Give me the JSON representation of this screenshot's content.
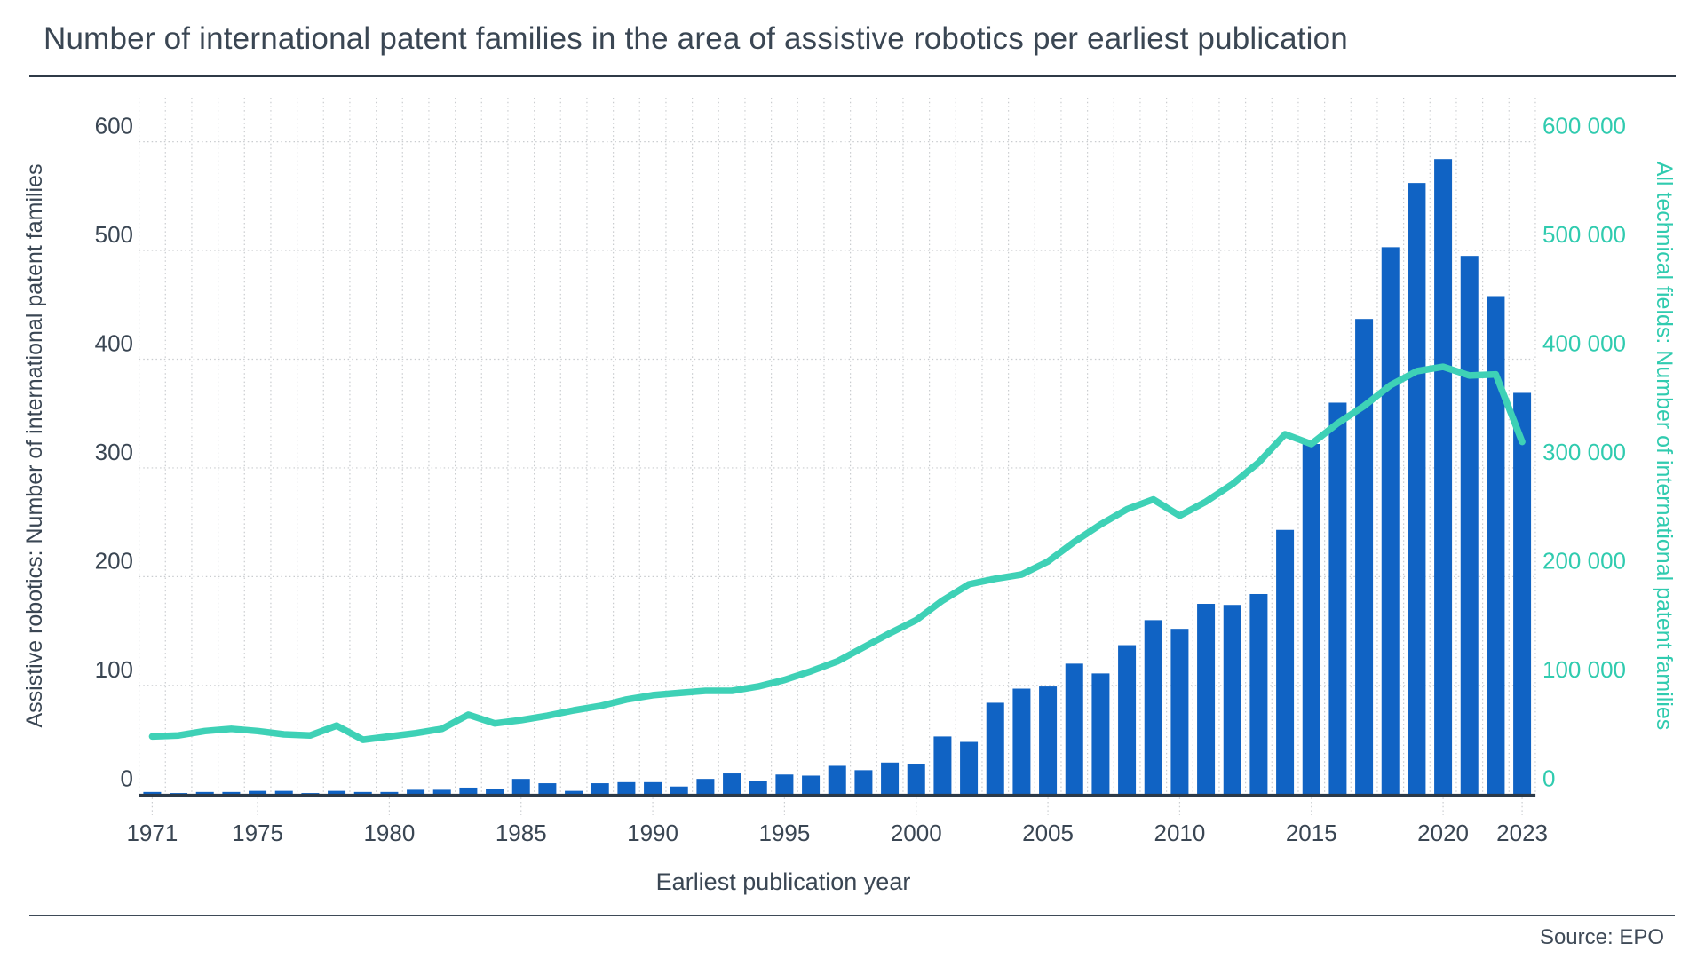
{
  "header": {
    "title": "Number of international patent families in the area of assistive robotics per earliest publication"
  },
  "footer": {
    "source": "Source: EPO"
  },
  "colors": {
    "bar": "#1063C4",
    "line": "#3ED1B6",
    "left_text": "#3A4653",
    "right_text": "#30CBAF",
    "axis_line": "#2C3A48",
    "gridline": "#C9CCCF"
  },
  "chart_data": {
    "type": "bar+line",
    "title": "Number of international patent families in the area of assistive robotics per earliest publication",
    "xlabel": "Earliest publication year",
    "ylabel_left": "Assistive robotics: Number of international patent families",
    "ylabel_right": "All technical fields: Number of international patent families",
    "grid": "dotted horizontal and vertical gridlines",
    "legend": "none",
    "ylim_left": [
      0,
      600
    ],
    "ylim_right": [
      0,
      600000
    ],
    "y_left_ticks": [
      0,
      100,
      200,
      300,
      400,
      500,
      600
    ],
    "y_right_tick_labels": [
      "0",
      "100 000",
      "200 000",
      "300 000",
      "400 000",
      "500 000",
      "600 000"
    ],
    "x_tick_years": [
      1971,
      1975,
      1980,
      1985,
      1990,
      1995,
      2000,
      2005,
      2010,
      2015,
      2020,
      2023
    ],
    "x": [
      1971,
      1972,
      1973,
      1974,
      1975,
      1976,
      1977,
      1978,
      1979,
      1980,
      1981,
      1982,
      1983,
      1984,
      1985,
      1986,
      1987,
      1988,
      1989,
      1990,
      1991,
      1992,
      1993,
      1994,
      1995,
      1996,
      1997,
      1998,
      1999,
      2000,
      2001,
      2002,
      2003,
      2004,
      2005,
      2006,
      2007,
      2008,
      2009,
      2010,
      2011,
      2012,
      2013,
      2014,
      2015,
      2016,
      2017,
      2018,
      2019,
      2020,
      2021,
      2022,
      2023
    ],
    "series": [
      {
        "name": "Assistive robotics: Number of international patent families",
        "type": "bar",
        "axis": "left",
        "color": "#1063C4",
        "values": [
          2,
          1,
          2,
          2,
          3,
          3,
          1,
          3,
          2,
          2,
          4,
          4,
          6,
          5,
          14,
          10,
          3,
          10,
          11,
          11,
          7,
          14,
          19,
          12,
          18,
          17,
          26,
          22,
          29,
          28,
          53,
          48,
          84,
          97,
          99,
          120,
          111,
          137,
          160,
          152,
          175,
          174,
          184,
          243,
          322,
          360,
          437,
          503,
          562,
          584,
          495,
          458,
          369
        ]
      },
      {
        "name": "All technical fields: Number of international patent families",
        "type": "line",
        "axis": "right",
        "color": "#3ED1B6",
        "values": [
          53000,
          54000,
          58000,
          60000,
          58000,
          55000,
          54000,
          63000,
          50000,
          53000,
          56000,
          60000,
          73000,
          65000,
          68000,
          72000,
          77000,
          81000,
          87000,
          91000,
          93000,
          95000,
          95000,
          99000,
          105000,
          113000,
          122000,
          135000,
          148000,
          160000,
          178000,
          193000,
          198000,
          202000,
          214000,
          232000,
          248000,
          262000,
          271000,
          256000,
          269000,
          285000,
          305000,
          331000,
          322000,
          341000,
          357000,
          376000,
          389000,
          393000,
          385000,
          386000,
          324000
        ]
      }
    ],
    "source": "Source: EPO"
  }
}
